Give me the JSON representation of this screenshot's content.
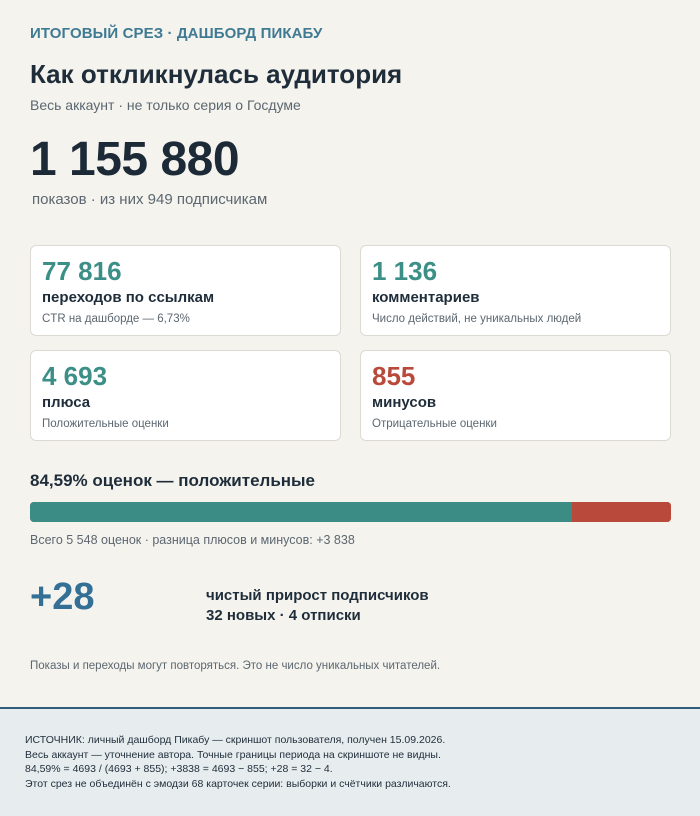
{
  "header": {
    "eyebrow": "ИТОГОВЫЙ СРЕЗ · ДАШБОРД ПИКАБУ",
    "title": "Как откликнулась аудитория",
    "subtitle": "Весь аккаунт · не только серия о Госдуме"
  },
  "hero": {
    "value": "1 155 880",
    "caption": "показов · из них 949 подписчикам"
  },
  "cards": [
    {
      "value": "77 816",
      "label": "переходов по ссылкам",
      "note": "CTR на дашборде — 6,73%",
      "color": "#3c8f86"
    },
    {
      "value": "1 136",
      "label": "комментариев",
      "note": "Число действий, не уникальных людей",
      "color": "#3c8f86"
    },
    {
      "value": "4 693",
      "label": "плюса",
      "note": "Положительные оценки",
      "color": "#3c8f86"
    },
    {
      "value": "855",
      "label": "минусов",
      "note": "Отрицательные оценки",
      "color": "#b94a3b"
    }
  ],
  "ratio": {
    "title": "84,59% оценок — положительные",
    "positive_share": 0.8459,
    "positive_color": "#3a8c84",
    "negative_color": "#b94a3b",
    "caption": "Всего 5 548 оценок · разница плюсов и минусов: +3 838"
  },
  "subscribers": {
    "net": "+28",
    "label": "чистый прирост подписчиков",
    "detail": "32 новых · 4 отписки"
  },
  "disclaimer": "Показы и переходы могут повторяться. Это не число уникальных читателей.",
  "footer": {
    "lines": [
      "ИСТОЧНИК: личный дашборд Пикабу — скриншот пользователя, получен 15.09.2026.",
      "Весь аккаунт — уточнение автора. Точные границы периода на скриншоте не видны.",
      "84,59% = 4693 / (4693 + 855); +3838 = 4693 − 855; +28 = 32 − 4.",
      "Этот срез не объединён с эмодзи 68 карточек серии: выборки и счётчики различаются."
    ]
  }
}
